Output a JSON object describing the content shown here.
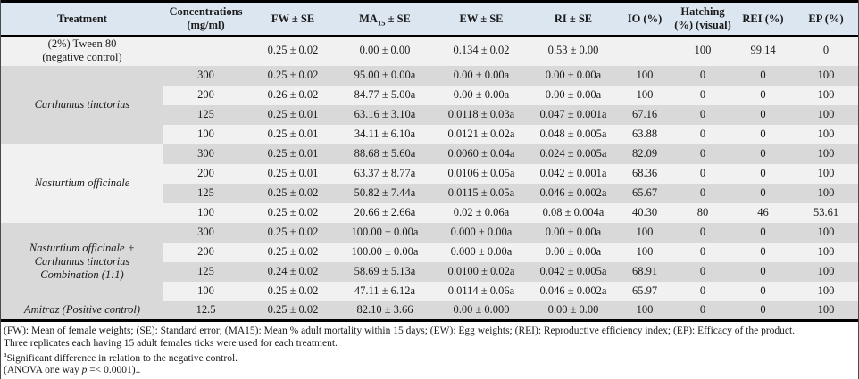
{
  "table": {
    "columns": [
      {
        "label": "Treatment"
      },
      {
        "label": "Concentrations (mg/ml)",
        "lines": [
          "Concentrations",
          "(mg/ml)"
        ]
      },
      {
        "label": "FW ± SE"
      },
      {
        "label": "MA15 ± SE",
        "pre": "MA",
        "sub": "15",
        "post": " ± SE"
      },
      {
        "label": "EW ± SE"
      },
      {
        "label": "RI ± SE"
      },
      {
        "label": "IO (%)"
      },
      {
        "label": "Hatching (%) (visual)",
        "lines": [
          "Hatching",
          "(%) (visual)"
        ]
      },
      {
        "label": "REI (%)"
      },
      {
        "label": "EP (%)"
      }
    ],
    "groups": [
      {
        "treatment_lines": [
          "(2%) Tween 80",
          "(negative control)"
        ],
        "italic": false,
        "rows": [
          [
            "",
            "0.25 ± 0.02",
            "0.00 ± 0.00",
            "0.134 ± 0.02",
            "0.53 ± 0.00",
            "",
            "100",
            "99.14",
            "0"
          ]
        ]
      },
      {
        "treatment_lines": [
          "Carthamus tinctorius"
        ],
        "italic": true,
        "rows": [
          [
            "300",
            "0.25 ± 0.02",
            "95.00 ± 0.00a",
            "0.00 ± 0.00a",
            "0.00 ± 0.00a",
            "100",
            "0",
            "0",
            "100"
          ],
          [
            "200",
            "0.26 ± 0.02",
            "84.77 ± 5.00a",
            "0.00 ± 0.00a",
            "0.00 ± 0.00a",
            "100",
            "0",
            "0",
            "100"
          ],
          [
            "125",
            "0.25 ± 0.01",
            "63.16 ± 3.10a",
            "0.0118 ± 0.03a",
            "0.047 ± 0.001a",
            "67.16",
            "0",
            "0",
            "100"
          ],
          [
            "100",
            "0.25 ± 0.01",
            "34.11 ± 6.10a",
            "0.0121 ± 0.02a",
            "0.048 ± 0.005a",
            "63.88",
            "0",
            "0",
            "100"
          ]
        ]
      },
      {
        "treatment_lines": [
          "Nasturtium officinale"
        ],
        "italic": true,
        "rows": [
          [
            "300",
            "0.25 ± 0.01",
            "88.68 ± 5.60a",
            "0.0060 ± 0.04a",
            "0.024 ± 0.005a",
            "82.09",
            "0",
            "0",
            "100"
          ],
          [
            "200",
            "0.25 ± 0.01",
            "63.37 ± 8.77a",
            "0.0106 ± 0.05a",
            "0.042 ± 0.001a",
            "68.36",
            "0",
            "0",
            "100"
          ],
          [
            "125",
            "0.25 ± 0.02",
            "50.82 ± 7.44a",
            "0.0115 ± 0.05a",
            "0.046 ± 0.002a",
            "65.67",
            "0",
            "0",
            "100"
          ],
          [
            "100",
            "0.25 ± 0.02",
            "20.66 ± 2.66a",
            "0.02 ± 0.06a",
            "0.08 ± 0.004a",
            "40.30",
            "80",
            "46",
            "53.61"
          ]
        ]
      },
      {
        "treatment_lines": [
          "Nasturtium officinale +",
          "Carthamus tinctorius",
          "Combination (1:1)"
        ],
        "italic": true,
        "rows": [
          [
            "300",
            "0.25 ± 0.02",
            "100.00 ± 0.00a",
            "0.000 ± 0.00a",
            "0.00 ± 0.00a",
            "100",
            "0",
            "0",
            "100"
          ],
          [
            "200",
            "0.25 ± 0.02",
            "100.00 ± 0.00a",
            "0.000 ± 0.00a",
            "0.00 ± 0.00a",
            "100",
            "0",
            "0",
            "100"
          ],
          [
            "125",
            "0.24 ± 0.02",
            "58.69 ± 5.13a",
            "0.0100 ± 0.02a",
            "0.042 ± 0.005a",
            "68.91",
            "0",
            "0",
            "100"
          ],
          [
            "100",
            "0.25 ± 0.02",
            "47.11 ± 6.12a",
            "0.0114 ± 0.06a",
            "0.046 ± 0.002a",
            "65.97",
            "0",
            "0",
            "100"
          ]
        ]
      },
      {
        "treatment_lines": [
          "Amitraz (Positive control)"
        ],
        "italic": true,
        "rows": [
          [
            "12.5",
            "0.25 ± 0.02",
            "82.10 ± 3.66",
            "0.00 ± 0.000",
            "0.00 ± 0.00",
            "100",
            "0",
            "0",
            "100"
          ]
        ]
      }
    ]
  },
  "footnotes": {
    "line1": "(FW): Mean of female weights; (SE): Standard error; (MA15): Mean % adult mortality within 15 days; (EW): Egg weights; (REI): Reproductive efficiency index; (EP): Efficacy of the product.",
    "line2": "Three replicates each having 15 adult females ticks were used for each treatment.",
    "line3_sup": "a",
    "line3_text": "Significant difference in relation to the negative control.",
    "line4_pre": "(ANOVA one way ",
    "line4_italic": "p",
    "line4_post": " =< 0.0001).."
  },
  "colors": {
    "header_bg": "#dce6f1",
    "row_gray": "#d9d9d9",
    "row_light": "#f1f1f1",
    "rule": "#000000"
  }
}
